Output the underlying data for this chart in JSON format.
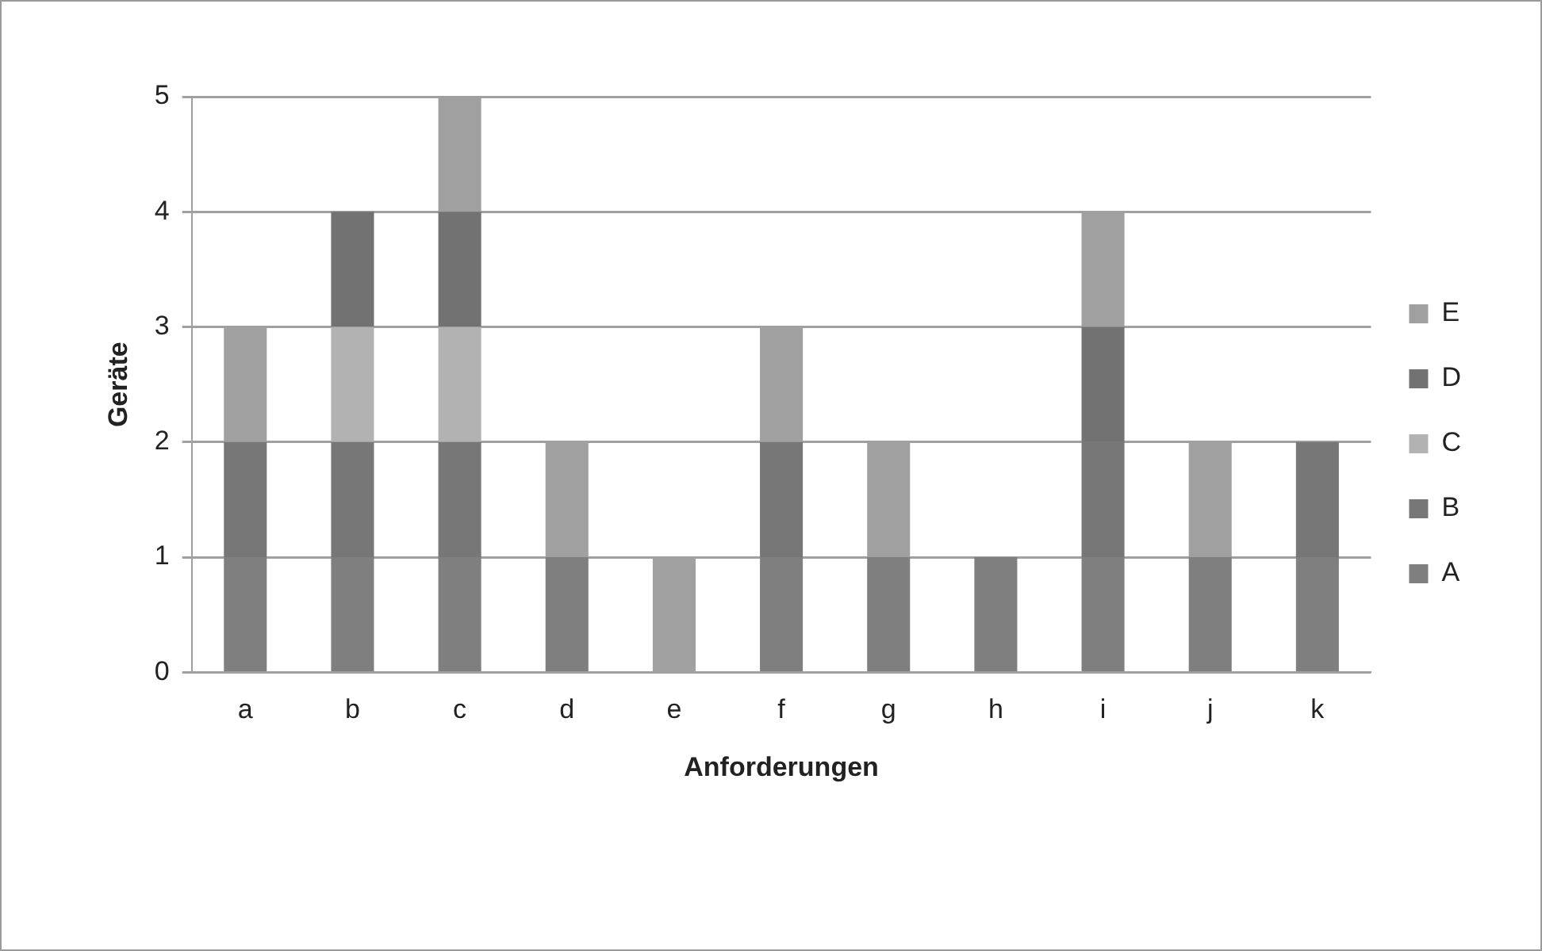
{
  "chart_data": {
    "type": "bar",
    "stacked": true,
    "xlabel": "Anforderungen",
    "ylabel": "Geräte",
    "categories": [
      "a",
      "b",
      "c",
      "d",
      "e",
      "f",
      "g",
      "h",
      "i",
      "j",
      "k"
    ],
    "series": [
      {
        "name": "A",
        "color": "#7f7f7f",
        "values": [
          1,
          1,
          1,
          1,
          0,
          1,
          1,
          1,
          1,
          1,
          1
        ]
      },
      {
        "name": "B",
        "color": "#777777",
        "values": [
          1,
          1,
          1,
          0,
          0,
          1,
          0,
          0,
          1,
          0,
          1
        ]
      },
      {
        "name": "C",
        "color": "#b2b2b2",
        "values": [
          0,
          1,
          1,
          0,
          0,
          0,
          0,
          0,
          0,
          0,
          0
        ]
      },
      {
        "name": "D",
        "color": "#727272",
        "values": [
          0,
          1,
          1,
          0,
          0,
          0,
          0,
          0,
          1,
          0,
          0
        ]
      },
      {
        "name": "E",
        "color": "#a0a0a0",
        "values": [
          1,
          0,
          1,
          1,
          1,
          1,
          1,
          0,
          1,
          1,
          0
        ]
      }
    ],
    "ylim": [
      0,
      5
    ],
    "yticks": [
      0,
      1,
      2,
      3,
      4,
      5
    ],
    "grid": "y",
    "legend": "right"
  }
}
